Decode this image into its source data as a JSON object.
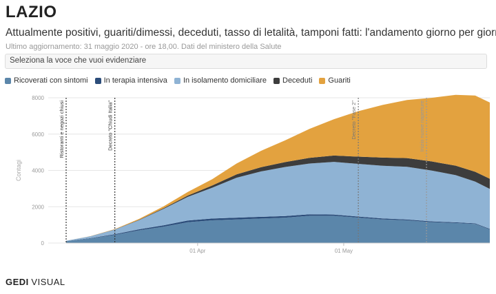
{
  "header": {
    "title": "LAZIO",
    "subtitle": "Attualmente positivi, guariti/dimessi, deceduti, tasso di letalità, tamponi fatti: l'andamento giorno per giorno",
    "updated": "Ultimo aggiornamento: 31 maggio 2020 - ore 18,00. Dati del ministero della Salute"
  },
  "selector": {
    "placeholder": "Seleziona la voce che vuoi evidenziare"
  },
  "brand": {
    "part1": "GEDI",
    "part2": "VISUAL"
  },
  "chart_data": {
    "type": "area",
    "stacked": true,
    "ylabel": "Contagi",
    "ylim": [
      0,
      8000
    ],
    "yticks": [
      0,
      2000,
      4000,
      6000,
      8000
    ],
    "x_start": "2020-03-05",
    "x_end": "2020-05-31",
    "xticks": [
      {
        "date": "2020-04-01",
        "label": "01 Apr"
      },
      {
        "date": "2020-05-01",
        "label": "01 May"
      }
    ],
    "x": [
      "2020-03-05",
      "2020-03-10",
      "2020-03-15",
      "2020-03-20",
      "2020-03-25",
      "2020-03-30",
      "2020-04-04",
      "2020-04-09",
      "2020-04-14",
      "2020-04-19",
      "2020-04-24",
      "2020-04-29",
      "2020-05-04",
      "2020-05-09",
      "2020-05-14",
      "2020-05-19",
      "2020-05-24",
      "2020-05-28",
      "2020-05-31"
    ],
    "series": [
      {
        "name": "Ricoverati con sintomi",
        "color": "#5b86aa",
        "values": [
          100,
          250,
          450,
          700,
          900,
          1150,
          1250,
          1300,
          1350,
          1400,
          1500,
          1500,
          1400,
          1300,
          1250,
          1150,
          1100,
          1050,
          750
        ]
      },
      {
        "name": "In terapia intensiva",
        "color": "#2c4d7a",
        "values": [
          10,
          20,
          40,
          60,
          80,
          95,
          100,
          100,
          95,
          90,
          80,
          70,
          60,
          55,
          50,
          45,
          40,
          35,
          30
        ]
      },
      {
        "name": "In isolamento domiciliare",
        "color": "#8fb3d4",
        "values": [
          20,
          100,
          250,
          500,
          900,
          1300,
          1700,
          2200,
          2500,
          2700,
          2800,
          2900,
          2900,
          2900,
          2900,
          2800,
          2600,
          2300,
          2200
        ]
      },
      {
        "name": "Deceduti",
        "color": "#3d3d3d",
        "values": [
          0,
          5,
          10,
          20,
          40,
          70,
          120,
          180,
          230,
          270,
          310,
          350,
          400,
          450,
          480,
          500,
          520,
          540,
          560
        ]
      },
      {
        "name": "Guariti",
        "color": "#e3a23f",
        "values": [
          0,
          5,
          20,
          50,
          100,
          200,
          350,
          600,
          900,
          1200,
          1600,
          2000,
          2500,
          2900,
          3200,
          3500,
          3900,
          4200,
          4200
        ]
      }
    ],
    "annotations": [
      {
        "date": "2020-03-05",
        "label": "Ristoranti e negozi chiusi",
        "color": "#333333"
      },
      {
        "date": "2020-03-15",
        "label": "Decreto \"Chiudi Italia\"",
        "color": "#333333"
      },
      {
        "date": "2020-05-04",
        "label": "Decreto \"Fase 2\"",
        "color": "#777777"
      },
      {
        "date": "2020-05-18",
        "label": "Inizio nuove riaperture",
        "color": "#999999"
      }
    ],
    "grid": true,
    "legend": "top-left"
  }
}
